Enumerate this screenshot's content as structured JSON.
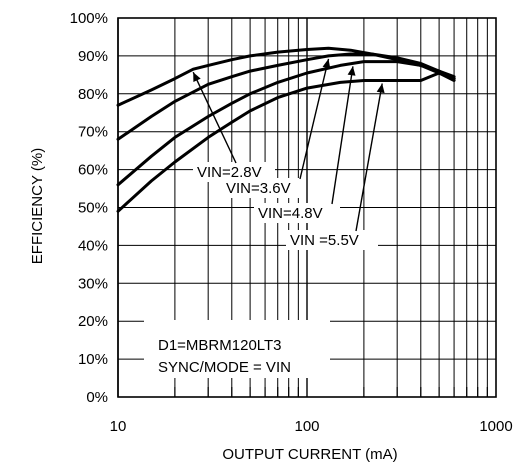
{
  "chart_data": {
    "type": "line",
    "xlabel": "OUTPUT CURRENT (mA)",
    "ylabel": "EFFICIENCY (%)",
    "x_scale": "log",
    "xlim": [
      10,
      1000
    ],
    "ylim": [
      0,
      100
    ],
    "x_ticks": [
      "10",
      "100",
      "1000"
    ],
    "y_ticks": [
      "0%",
      "10%",
      "20%",
      "30%",
      "40%",
      "50%",
      "60%",
      "70%",
      "80%",
      "90%",
      "100%"
    ],
    "grid": true,
    "series": [
      {
        "name": "VIN=2.8V",
        "x": [
          10,
          15,
          20,
          25,
          30,
          40,
          50,
          70,
          100,
          130,
          170,
          220,
          300,
          400,
          500,
          600
        ],
        "y": [
          77,
          81,
          84,
          86.5,
          87.5,
          89,
          90,
          91,
          91.7,
          92,
          91.5,
          90.5,
          89,
          87.5,
          85.5,
          83.5
        ]
      },
      {
        "name": "VIN=3.6V",
        "x": [
          10,
          15,
          20,
          30,
          40,
          50,
          70,
          100,
          130,
          170,
          220,
          300,
          400,
          500,
          600
        ],
        "y": [
          68,
          74,
          78,
          82.5,
          84.5,
          86,
          87.5,
          89,
          90,
          90.5,
          90.5,
          89.5,
          88,
          86,
          84
        ]
      },
      {
        "name": "VIN=4.8V",
        "x": [
          10,
          15,
          20,
          30,
          40,
          50,
          70,
          100,
          150,
          200,
          300,
          400,
          500,
          600
        ],
        "y": [
          56,
          63.5,
          68.5,
          74,
          77.5,
          80,
          83,
          85.5,
          87.5,
          88.5,
          88.5,
          87.5,
          86,
          84.5
        ]
      },
      {
        "name": "VIN =5.5V",
        "x": [
          10,
          15,
          20,
          30,
          40,
          50,
          70,
          100,
          150,
          200,
          300,
          400,
          500,
          600
        ],
        "y": [
          49,
          57,
          62,
          68.5,
          72.5,
          75.5,
          79,
          81.5,
          83,
          83.5,
          83.5,
          83.5,
          85.5,
          84
        ]
      }
    ],
    "annotations": [
      {
        "text": "VIN=2.8V",
        "series": "VIN=2.8V"
      },
      {
        "text": "VIN=3.6V",
        "series": "VIN=3.6V"
      },
      {
        "text": "VIN=4.8V",
        "series": "VIN=4.8V"
      },
      {
        "text": "VIN =5.5V",
        "series": "VIN =5.5V"
      }
    ],
    "note_lines": [
      "D1=MBRM120LT3",
      "SYNC/MODE = VIN"
    ]
  }
}
